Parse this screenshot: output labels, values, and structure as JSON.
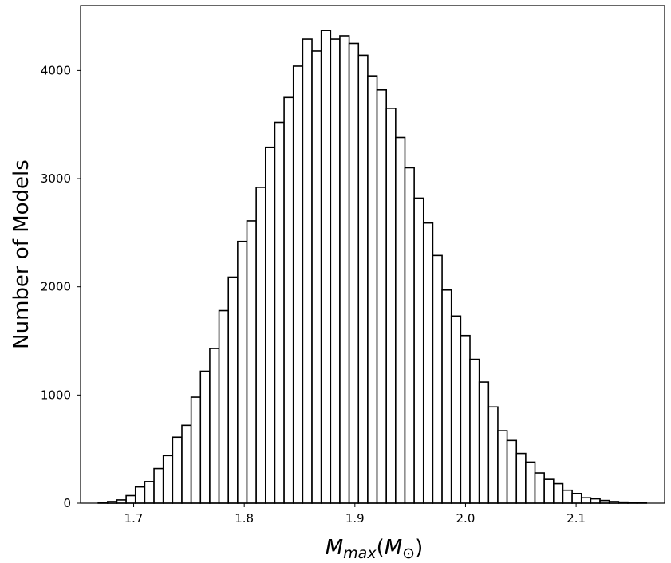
{
  "chart_data": {
    "type": "bar",
    "subtype": "histogram",
    "title": "",
    "xlabel": "M_max(M_⊙)",
    "ylabel": "Number of Models",
    "xlim": [
      1.652,
      2.18
    ],
    "ylim": [
      0,
      4600
    ],
    "grid": false,
    "legend": null,
    "bar_fill": "#ffffff",
    "bar_edge": "#000000",
    "bin_width": 0.0084,
    "bin_edges_start": 1.668,
    "xticks": [
      1.7,
      1.8,
      1.9,
      2.0,
      2.1
    ],
    "xtick_labels": [
      "1.7",
      "1.8",
      "1.9",
      "2.0",
      "2.1"
    ],
    "yticks": [
      0,
      1000,
      2000,
      3000,
      4000
    ],
    "ytick_labels": [
      "0",
      "1000",
      "2000",
      "3000",
      "4000"
    ],
    "values": [
      5,
      15,
      30,
      70,
      150,
      200,
      320,
      440,
      610,
      720,
      980,
      1220,
      1430,
      1780,
      2090,
      2420,
      2610,
      2920,
      3290,
      3520,
      3750,
      4040,
      4290,
      4180,
      4370,
      4290,
      4320,
      4250,
      4140,
      3950,
      3820,
      3650,
      3380,
      3100,
      2820,
      2590,
      2290,
      1970,
      1730,
      1550,
      1330,
      1120,
      890,
      670,
      580,
      460,
      380,
      280,
      220,
      180,
      120,
      90,
      50,
      40,
      25,
      15,
      10,
      8,
      5
    ]
  }
}
